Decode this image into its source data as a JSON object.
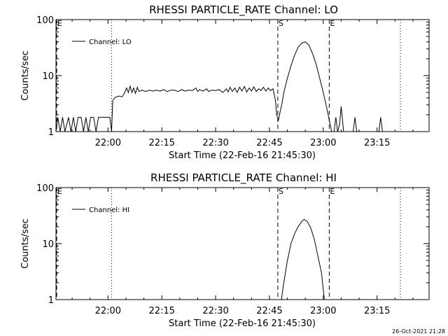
{
  "footer": {
    "timestamp": "26-Oct-2021 21:28"
  },
  "colors": {
    "background": "#ffffff",
    "ink": "#000000"
  },
  "chart_data": [
    {
      "type": "line",
      "title": "RHESSI PARTICLE_RATE Channel: LO",
      "xlabel": "Start Time (22-Feb-16 21:45:30)",
      "ylabel": "Counts/sec",
      "scale": "log",
      "ylim": [
        1,
        100
      ],
      "yticks": [
        1,
        10,
        100
      ],
      "yticklabels": [
        "1",
        "10",
        "100"
      ],
      "xlim": [
        "21:45:30",
        "23:29:30"
      ],
      "xticks": [
        "22:00",
        "22:15",
        "22:30",
        "22:45",
        "23:00",
        "23:15"
      ],
      "series": [
        {
          "name": "Channel: LO",
          "points": [
            [
              "21:45:30",
              1
            ],
            [
              "21:46:00",
              1.8
            ],
            [
              "21:46:40",
              1
            ],
            [
              "21:47:20",
              1.8
            ],
            [
              "21:48:00",
              1
            ],
            [
              "21:49:00",
              1.8
            ],
            [
              "21:49:40",
              1
            ],
            [
              "21:50:20",
              1.8
            ],
            [
              "21:51:00",
              1
            ],
            [
              "21:51:40",
              1.8
            ],
            [
              "21:52:30",
              1.8
            ],
            [
              "21:53:10",
              1
            ],
            [
              "21:53:50",
              1.8
            ],
            [
              "21:54:30",
              1
            ],
            [
              "21:55:10",
              1.8
            ],
            [
              "21:56:00",
              1.8
            ],
            [
              "21:56:40",
              1
            ],
            [
              "21:57:20",
              1.8
            ],
            [
              "21:58:30",
              1.8
            ],
            [
              "21:59:30",
              1.8
            ],
            [
              "22:00:30",
              1.8
            ],
            [
              "22:01:00",
              1
            ],
            [
              "22:01:20",
              3.6
            ],
            [
              "22:02:00",
              4.1
            ],
            [
              "22:03:00",
              4.3
            ],
            [
              "22:04:00",
              4.2
            ],
            [
              "22:04:40",
              5.0
            ],
            [
              "22:05:10",
              6.0
            ],
            [
              "22:05:40",
              5.0
            ],
            [
              "22:06:10",
              6.5
            ],
            [
              "22:06:40",
              5.0
            ],
            [
              "22:07:10",
              6.0
            ],
            [
              "22:07:40",
              4.8
            ],
            [
              "22:08:10",
              6.2
            ],
            [
              "22:08:40",
              5.2
            ],
            [
              "22:09:30",
              5.5
            ],
            [
              "22:10:30",
              5.2
            ],
            [
              "22:11:30",
              5.5
            ],
            [
              "22:12:30",
              5.3
            ],
            [
              "22:13:30",
              5.5
            ],
            [
              "22:14:30",
              5.3
            ],
            [
              "22:15:30",
              5.6
            ],
            [
              "22:16:30",
              5.2
            ],
            [
              "22:17:30",
              5.5
            ],
            [
              "22:18:30",
              5.5
            ],
            [
              "22:19:30",
              5.2
            ],
            [
              "22:20:30",
              5.6
            ],
            [
              "22:21:30",
              5.3
            ],
            [
              "22:22:30",
              5.5
            ],
            [
              "22:23:30",
              5.4
            ],
            [
              "22:24:30",
              6.0
            ],
            [
              "22:25:00",
              5.2
            ],
            [
              "22:25:30",
              5.6
            ],
            [
              "22:26:30",
              5.3
            ],
            [
              "22:27:30",
              5.8
            ],
            [
              "22:28:00",
              5.2
            ],
            [
              "22:29:00",
              5.5
            ],
            [
              "22:30:00",
              5.4
            ],
            [
              "22:31:00",
              5.6
            ],
            [
              "22:32:00",
              5.0
            ],
            [
              "22:33:00",
              5.8
            ],
            [
              "22:33:30",
              5.1
            ],
            [
              "22:34:00",
              6.2
            ],
            [
              "22:34:40",
              5.2
            ],
            [
              "22:35:20",
              6.0
            ],
            [
              "22:36:00",
              5.0
            ],
            [
              "22:36:40",
              6.2
            ],
            [
              "22:37:20",
              5.3
            ],
            [
              "22:38:00",
              6.4
            ],
            [
              "22:38:40",
              5.1
            ],
            [
              "22:39:20",
              6.0
            ],
            [
              "22:40:00",
              5.3
            ],
            [
              "22:40:40",
              6.3
            ],
            [
              "22:41:20",
              5.2
            ],
            [
              "22:42:00",
              5.8
            ],
            [
              "22:42:40",
              5.4
            ],
            [
              "22:43:20",
              6.2
            ],
            [
              "22:44:00",
              5.3
            ],
            [
              "22:44:40",
              6.0
            ],
            [
              "22:45:20",
              5.4
            ],
            [
              "22:46:00",
              5.8
            ],
            [
              "22:46:40",
              3.6
            ],
            [
              "22:47:00",
              2.0
            ],
            [
              "22:47:30",
              1.6
            ],
            [
              "22:48:00",
              2.3
            ],
            [
              "22:48:30",
              3.2
            ],
            [
              "22:49:00",
              5.0
            ],
            [
              "22:50:00",
              9.0
            ],
            [
              "22:51:00",
              15
            ],
            [
              "22:52:00",
              23
            ],
            [
              "22:53:00",
              32
            ],
            [
              "22:54:00",
              38
            ],
            [
              "22:55:00",
              40
            ],
            [
              "22:56:00",
              35
            ],
            [
              "22:57:00",
              25
            ],
            [
              "22:58:00",
              16
            ],
            [
              "22:59:00",
              9.0
            ],
            [
              "23:00:00",
              5.0
            ],
            [
              "23:01:00",
              2.6
            ],
            [
              "23:01:40",
              1.6
            ],
            [
              "23:02:20",
              1.0
            ],
            [
              "23:03:00",
              1.0
            ],
            [
              "23:03:30",
              1.8
            ],
            [
              "23:04:00",
              1.0
            ],
            [
              "23:04:30",
              1.3
            ],
            [
              "23:05:00",
              2.8
            ],
            [
              "23:05:40",
              1.0
            ],
            [
              "23:08:20",
              1.0
            ],
            [
              "23:08:50",
              1.8
            ],
            [
              "23:09:20",
              1.0
            ],
            [
              "23:15:30",
              1.0
            ],
            [
              "23:16:00",
              1.8
            ],
            [
              "23:16:30",
              1.0
            ],
            [
              "23:29:30",
              1.0
            ]
          ]
        }
      ],
      "markers": [
        {
          "label": "E",
          "time": "21:45:30",
          "style": "dashed"
        },
        {
          "label": "",
          "time": "22:01:00",
          "style": "dotted"
        },
        {
          "label": "S",
          "time": "22:47:20",
          "style": "dashed"
        },
        {
          "label": "E",
          "time": "23:01:40",
          "style": "dashed"
        },
        {
          "label": "",
          "time": "23:21:30",
          "style": "dotted"
        }
      ],
      "legend": "top-left",
      "grid": false
    },
    {
      "type": "line",
      "title": "RHESSI PARTICLE_RATE Channel: HI",
      "xlabel": "Start Time (22-Feb-16 21:45:30)",
      "ylabel": "Counts/sec",
      "scale": "log",
      "ylim": [
        1,
        100
      ],
      "yticks": [
        1,
        10,
        100
      ],
      "yticklabels": [
        "1",
        "10",
        "100"
      ],
      "xlim": [
        "21:45:30",
        "23:29:30"
      ],
      "xticks": [
        "22:00",
        "22:15",
        "22:30",
        "22:45",
        "23:00",
        "23:15"
      ],
      "series": [
        {
          "name": "Channel: HI",
          "points": [
            [
              "22:48:20",
              1.0
            ],
            [
              "22:49:00",
              2.0
            ],
            [
              "22:50:00",
              5.0
            ],
            [
              "22:51:00",
              10
            ],
            [
              "22:52:00",
              15
            ],
            [
              "22:53:00",
              20
            ],
            [
              "22:54:00",
              25
            ],
            [
              "22:54:40",
              27
            ],
            [
              "22:55:30",
              25
            ],
            [
              "22:56:30",
              19
            ],
            [
              "22:57:30",
              12
            ],
            [
              "22:58:30",
              6.0
            ],
            [
              "22:59:30",
              3.0
            ],
            [
              "23:00:00",
              1.5
            ],
            [
              "23:00:20",
              1.0
            ]
          ]
        }
      ],
      "markers": [
        {
          "label": "E",
          "time": "21:45:30",
          "style": "dashed"
        },
        {
          "label": "",
          "time": "22:01:00",
          "style": "dotted"
        },
        {
          "label": "S",
          "time": "22:47:20",
          "style": "dashed"
        },
        {
          "label": "E",
          "time": "23:01:40",
          "style": "dashed"
        },
        {
          "label": "",
          "time": "23:21:30",
          "style": "dotted"
        }
      ],
      "legend": "top-left",
      "grid": false
    }
  ]
}
